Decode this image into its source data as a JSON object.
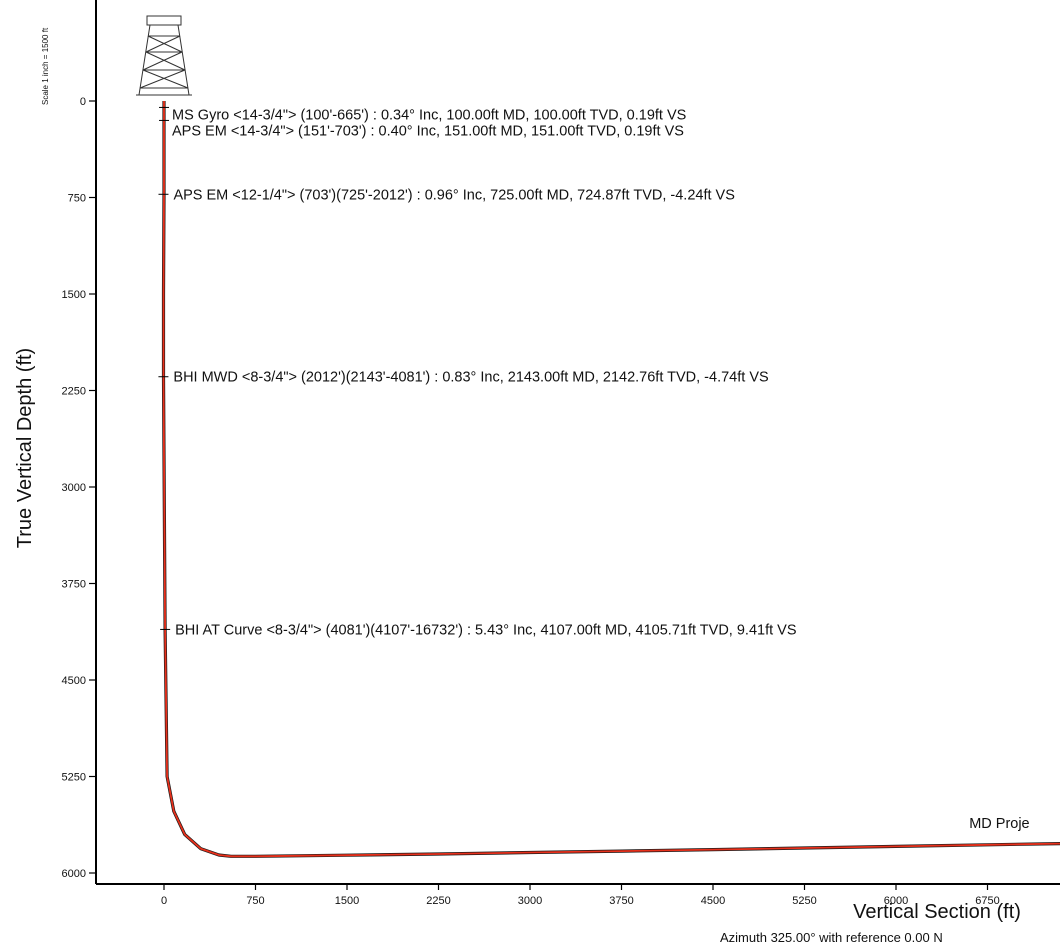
{
  "chart_data": {
    "type": "line",
    "xlabel": "Vertical Section (ft)",
    "ylabel": "True Vertical Depth (ft)",
    "scale_note": "Scale 1 inch = 1500 ft",
    "footnote": "Azimuth 325.00° with reference 0.00 N",
    "xlim": [
      -850,
      8200
    ],
    "ylim": [
      6000,
      -700
    ],
    "x_ticks": [
      0,
      750,
      1500,
      2250,
      3000,
      3750,
      4500,
      5250,
      6000,
      6750
    ],
    "y_ticks": [
      0,
      750,
      1500,
      2250,
      3000,
      3750,
      4500,
      5250,
      6000
    ],
    "grid": false,
    "series": [
      {
        "color": "#e8301b",
        "x": [
          0,
          0,
          -4,
          -4,
          9,
          25,
          80,
          170,
          300,
          450,
          550,
          750,
          1500,
          2250,
          3000,
          3750,
          4500,
          5250,
          6000,
          6750,
          7500,
          8200
        ],
        "y": [
          0,
          725,
          1500,
          2143,
          4107,
          5250,
          5520,
          5700,
          5810,
          5860,
          5870,
          5870,
          5862,
          5852,
          5841,
          5830,
          5818,
          5806,
          5793,
          5781,
          5769,
          5760
        ]
      }
    ],
    "annotations": [
      {
        "text": "MS Gyro <14-3/4\"> (100'-665') : 0.34° Inc, 100.00ft MD, 100.00ft TVD, 0.19ft VS",
        "x": 0.19,
        "y": 50
      },
      {
        "text": "APS EM <14-3/4\"> (151'-703') : 0.40° Inc, 151.00ft MD, 151.00ft TVD, 0.19ft VS",
        "x": 0.19,
        "y": 151
      },
      {
        "text": "APS EM <12-1/4\"> (703')(725'-2012') : 0.96° Inc, 725.00ft MD, 724.87ft TVD, -4.24ft VS",
        "x": -4.24,
        "y": 725
      },
      {
        "text": "BHI MWD <8-3/4\"> (2012')(2143'-4081') : 0.83° Inc, 2143.00ft MD, 2142.76ft TVD, -4.74ft VS",
        "x": -4.74,
        "y": 2143
      },
      {
        "text": "BHI AT Curve <8-3/4\"> (4081')(4107'-16732') : 5.43° Inc, 4107.00ft MD, 4105.71ft TVD, 9.41ft VS",
        "x": 9.41,
        "y": 4107
      },
      {
        "text": "MD Proje",
        "x": 6600,
        "y": 5760
      }
    ]
  }
}
